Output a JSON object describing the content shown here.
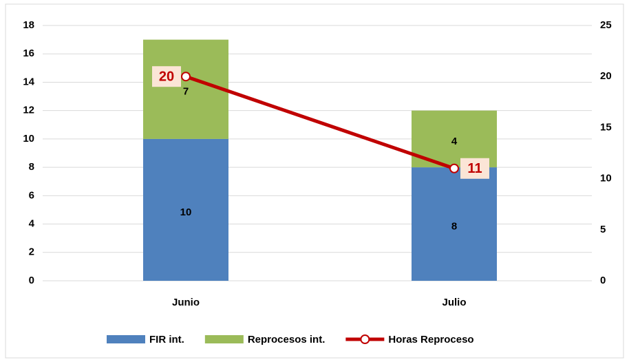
{
  "chart_data": {
    "type": "bar",
    "categories": [
      "Junio",
      "Julio"
    ],
    "series": [
      {
        "name": "FIR int.",
        "color": "#4f81bd",
        "values": [
          10,
          8
        ]
      },
      {
        "name": "Reprocesos int.",
        "color": "#9bbb59",
        "values": [
          7,
          4
        ]
      },
      {
        "name": "Horas Reproceso",
        "color": "#c00000",
        "values": [
          20,
          11
        ],
        "axis": "y2",
        "type": "line"
      }
    ],
    "stacked": true,
    "ylim": [
      0,
      18
    ],
    "yticks": [
      0,
      2,
      4,
      6,
      8,
      10,
      12,
      14,
      16,
      18
    ],
    "y2lim": [
      0,
      25
    ],
    "y2ticks": [
      0,
      5,
      10,
      15,
      20,
      25
    ],
    "grid": true,
    "legend": "bottom"
  }
}
